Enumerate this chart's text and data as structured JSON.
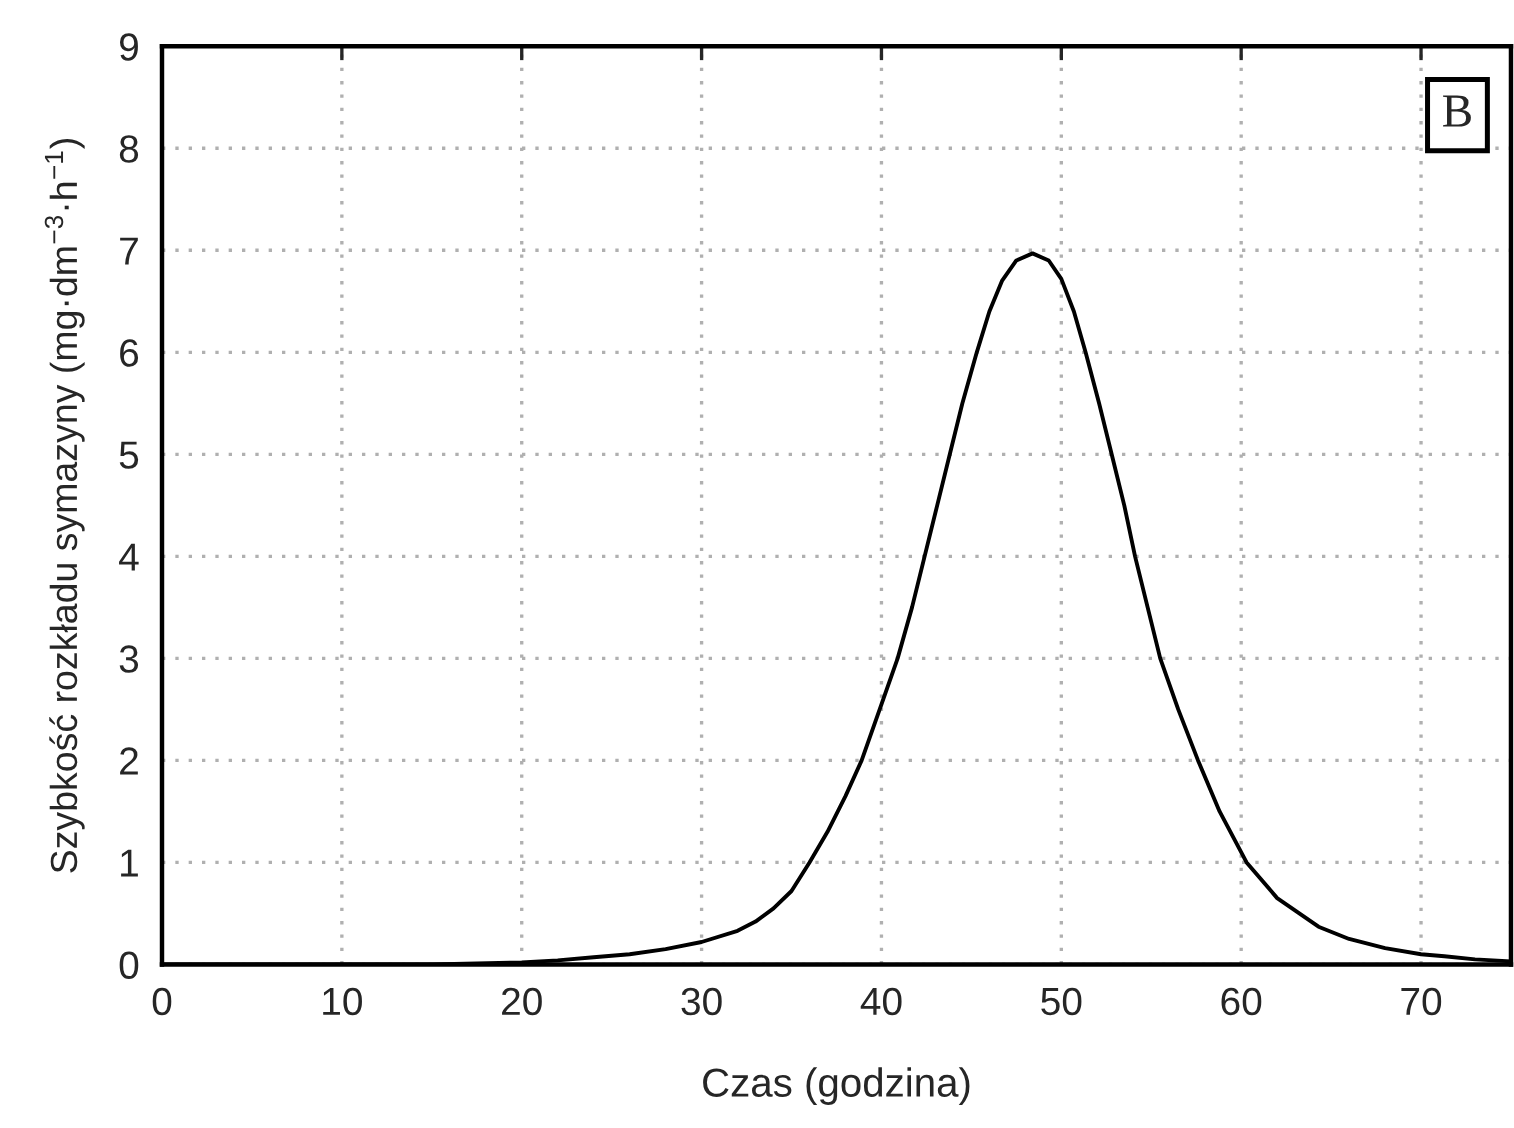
{
  "chart_data": {
    "type": "line",
    "xlabel": "Czas (godzina)",
    "ylabel": "Szybkość rozkładu symazyny (mg·dm$^{−3}$·h$^{−1}$)",
    "annotations": [
      "B"
    ],
    "series": [
      {
        "color": "#000000",
        "x": [
          0,
          10,
          15,
          20,
          22,
          24,
          26,
          28,
          30,
          32,
          33,
          34,
          35,
          36,
          37,
          38,
          38.9,
          40,
          40.9,
          41.7,
          42.4,
          43.1,
          43.8,
          44.5,
          45.3,
          46,
          46.7,
          47.5,
          48.4,
          49.3,
          50,
          50.7,
          51.35,
          52.1,
          52.8,
          53.5,
          54.1,
          54.8,
          55.5,
          56.5,
          57.6,
          58.8,
          60.3,
          62,
          64.3,
          66,
          68,
          70,
          71.3,
          73,
          75
        ],
        "values": [
          0,
          0,
          0,
          0.02,
          0.04,
          0.07,
          0.1,
          0.15,
          0.22,
          0.33,
          0.42,
          0.55,
          0.72,
          1.0,
          1.3,
          1.65,
          2.0,
          2.55,
          3.0,
          3.5,
          4.0,
          4.5,
          5.0,
          5.5,
          6.0,
          6.4,
          6.7,
          6.9,
          6.97,
          6.9,
          6.72,
          6.4,
          6.0,
          5.5,
          5.0,
          4.5,
          4.0,
          3.5,
          3.0,
          2.5,
          2.0,
          1.5,
          1.0,
          0.65,
          0.37,
          0.25,
          0.16,
          0.1,
          0.08,
          0.05,
          0.03
        ]
      }
    ],
    "xlim": [
      0,
      75
    ],
    "ylim": [
      0,
      9
    ],
    "xticks": [
      0,
      10,
      20,
      30,
      40,
      50,
      60,
      70
    ],
    "yticks": [
      0,
      1,
      2,
      3,
      4,
      5,
      6,
      7,
      8,
      9
    ],
    "grid": true,
    "line_style": "solid"
  }
}
